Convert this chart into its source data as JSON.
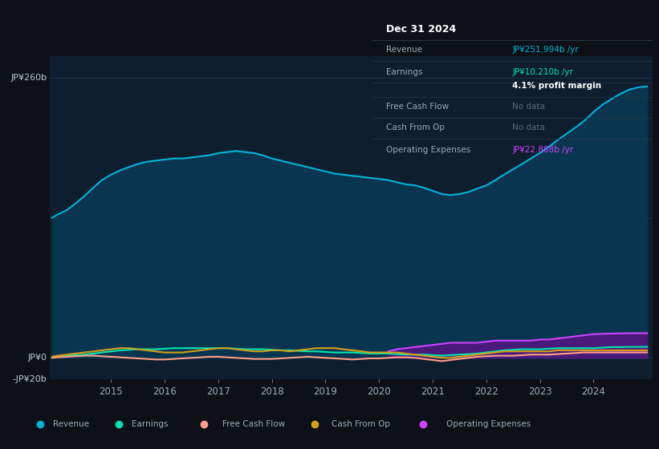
{
  "background_color": "#0d1117",
  "chart_bg_color": "#0e1e2e",
  "ylabel_top": "JP¥260b",
  "ylabel_zero": "JP¥0",
  "ylabel_neg": "-JP¥20b",
  "x_years": [
    2013.9,
    2014.0,
    2014.17,
    2014.33,
    2014.5,
    2014.67,
    2014.83,
    2015.0,
    2015.17,
    2015.33,
    2015.5,
    2015.67,
    2015.83,
    2016.0,
    2016.17,
    2016.33,
    2016.5,
    2016.67,
    2016.83,
    2017.0,
    2017.17,
    2017.33,
    2017.5,
    2017.67,
    2017.83,
    2018.0,
    2018.17,
    2018.33,
    2018.5,
    2018.67,
    2018.83,
    2019.0,
    2019.17,
    2019.33,
    2019.5,
    2019.67,
    2019.83,
    2020.0,
    2020.17,
    2020.33,
    2020.5,
    2020.67,
    2020.83,
    2021.0,
    2021.17,
    2021.33,
    2021.5,
    2021.67,
    2021.83,
    2022.0,
    2022.17,
    2022.33,
    2022.5,
    2022.67,
    2022.83,
    2023.0,
    2023.17,
    2023.33,
    2023.5,
    2023.67,
    2023.83,
    2024.0,
    2024.17,
    2024.33,
    2024.5,
    2024.67,
    2024.83,
    2025.0
  ],
  "revenue": [
    130,
    133,
    137,
    143,
    150,
    158,
    165,
    170,
    174,
    177,
    180,
    182,
    183,
    184,
    185,
    185,
    186,
    187,
    188,
    190,
    191,
    192,
    191,
    190,
    188,
    185,
    183,
    181,
    179,
    177,
    175,
    173,
    171,
    170,
    169,
    168,
    167,
    166,
    165,
    163,
    161,
    160,
    158,
    155,
    152,
    151,
    152,
    154,
    157,
    160,
    165,
    170,
    175,
    180,
    185,
    190,
    196,
    202,
    208,
    214,
    220,
    228,
    235,
    240,
    245,
    249,
    251,
    252
  ],
  "earnings": [
    1,
    1.5,
    2,
    2.5,
    3,
    4,
    5,
    6,
    7,
    7.5,
    8,
    8,
    8,
    8.5,
    9,
    9,
    9,
    9,
    9,
    9,
    9,
    8.5,
    8,
    8,
    8,
    7.5,
    7,
    7,
    6.5,
    6,
    6,
    5.5,
    5,
    5,
    5,
    4.5,
    4,
    4,
    4,
    3.5,
    3,
    3,
    3,
    2.5,
    2,
    2.5,
    3,
    3.5,
    4,
    5,
    6,
    7,
    7.5,
    8,
    8,
    8,
    8.5,
    9,
    9,
    9,
    9,
    9,
    9.5,
    10,
    10,
    10.1,
    10.2,
    10.2
  ],
  "free_cash_flow": [
    0,
    0.5,
    1,
    1.5,
    2,
    2,
    1.5,
    1,
    0.5,
    0,
    -0.5,
    -1,
    -1.5,
    -1.5,
    -1,
    -0.5,
    0,
    0.5,
    1,
    1,
    0.5,
    0,
    -0.5,
    -1,
    -1,
    -1,
    -0.5,
    0,
    0.5,
    1,
    0.5,
    0,
    -0.5,
    -1,
    -1.5,
    -1,
    -0.5,
    -0.5,
    0,
    0.5,
    0.5,
    0,
    -1,
    -2,
    -3,
    -2,
    -1,
    0,
    1,
    1.5,
    2,
    2,
    2,
    2.5,
    3,
    3,
    3,
    3.5,
    4,
    4.5,
    5,
    5,
    5,
    5,
    5,
    5,
    5,
    5
  ],
  "cash_from_op": [
    1,
    2,
    3,
    4,
    5,
    6,
    7,
    8,
    9,
    9,
    8,
    7,
    6,
    5,
    5,
    5,
    6,
    7,
    8,
    9,
    9,
    8,
    7,
    6,
    6,
    7,
    7,
    6,
    7,
    8,
    9,
    9,
    9,
    8,
    7,
    6,
    5,
    5,
    5,
    5,
    4,
    3,
    2,
    1,
    0,
    0,
    1,
    2,
    3,
    4,
    5,
    6,
    6,
    6,
    6,
    6,
    6,
    7,
    7,
    7,
    7,
    7,
    7,
    7,
    7,
    7,
    7,
    7
  ],
  "operating_expenses": [
    null,
    null,
    null,
    null,
    null,
    null,
    null,
    null,
    null,
    null,
    null,
    null,
    null,
    null,
    null,
    null,
    null,
    null,
    null,
    null,
    null,
    null,
    null,
    null,
    null,
    null,
    null,
    null,
    null,
    null,
    null,
    null,
    null,
    null,
    null,
    null,
    null,
    null,
    6,
    8,
    9,
    10,
    11,
    12,
    13,
    14,
    14,
    14,
    14,
    15,
    16,
    16,
    16,
    16,
    16,
    17,
    17,
    18,
    19,
    20,
    21,
    22,
    22.3,
    22.5,
    22.7,
    22.8,
    22.888,
    22.888
  ],
  "revenue_color": "#00b4d8",
  "revenue_fill_color": "#0a3550",
  "earnings_color": "#00e5b0",
  "free_cash_flow_color": "#ff9f86",
  "cash_from_op_color": "#d4a017",
  "operating_expenses_color": "#cc44ff",
  "operating_expenses_fill_color": "#4a1a7a",
  "grid_color": "#1a3050",
  "text_color": "#9aaabb",
  "axis_label_color": "#c0c8d8",
  "tooltip_bg": "#111820",
  "tooltip_border": "#2a3545",
  "ylim": [
    -20,
    280
  ],
  "xlim": [
    2013.85,
    2025.1
  ],
  "x_ticks": [
    2015,
    2016,
    2017,
    2018,
    2019,
    2020,
    2021,
    2022,
    2023,
    2024
  ]
}
